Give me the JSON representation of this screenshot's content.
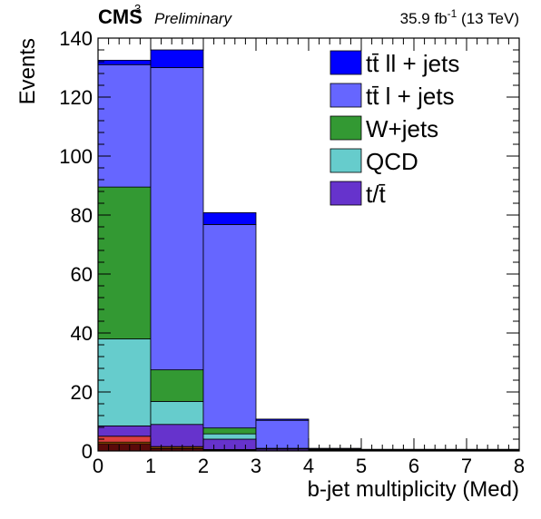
{
  "header": {
    "experiment": "CMS",
    "exponent": "3",
    "status": "Preliminary",
    "luminosity_prefix": "35.9 fb",
    "luminosity_exp": "-1",
    "luminosity_suffix": " (13 TeV)"
  },
  "chart_data": {
    "type": "bar",
    "stacked": true,
    "bins": [
      [
        0,
        1
      ],
      [
        1,
        2
      ],
      [
        2,
        3
      ],
      [
        3,
        4
      ],
      [
        4,
        5
      ],
      [
        5,
        6
      ],
      [
        6,
        7
      ],
      [
        7,
        8
      ]
    ],
    "xlabel": "b-jet multiplicity (Med)",
    "ylabel": "Events",
    "xlim": [
      0,
      8
    ],
    "ylim": [
      0,
      140
    ],
    "xticks": [
      0,
      1,
      2,
      3,
      4,
      5,
      6,
      7,
      8
    ],
    "yticks": [
      0,
      20,
      40,
      60,
      80,
      100,
      120,
      140
    ],
    "legend_position": "top-right",
    "series": [
      {
        "name": "",
        "color": "#5a0a0a",
        "values": [
          2.5,
          0.8,
          0.2,
          0.1,
          0,
          0,
          0,
          0
        ]
      },
      {
        "name": "",
        "color": "#ff8c00",
        "values": [
          0.5,
          0.4,
          0.1,
          0,
          0,
          0,
          0,
          0
        ]
      },
      {
        "name": "",
        "color": "#dd3f3f",
        "values": [
          2,
          0.3,
          0.2,
          0,
          0,
          0,
          0,
          0
        ]
      },
      {
        "name": "t/t̄",
        "color": "#6633cc",
        "values": [
          3.5,
          7.5,
          3.5,
          0.5,
          0.2,
          0,
          0,
          0
        ]
      },
      {
        "name": "QCD",
        "color": "#66cccc",
        "values": [
          29.5,
          7.8,
          1.8,
          0.2,
          0,
          0,
          0,
          0
        ]
      },
      {
        "name": "W+jets",
        "color": "#339933",
        "values": [
          51.5,
          10.7,
          2,
          0.1,
          0,
          0,
          0,
          0
        ]
      },
      {
        "name": "tt̄ l + jets",
        "color": "#6666ff",
        "values": [
          41.5,
          102.5,
          69,
          9.5,
          0.6,
          0.1,
          0,
          0
        ]
      },
      {
        "name": "tt̄ ll + jets",
        "color": "#0000ff",
        "values": [
          1.5,
          6,
          4,
          0.4,
          0.1,
          0,
          0,
          0
        ]
      }
    ],
    "legend": [
      {
        "label": "tt̄ ll + jets",
        "color": "#0000ff"
      },
      {
        "label": "tt̄ l + jets",
        "color": "#6666ff"
      },
      {
        "label": "W+jets",
        "color": "#339933"
      },
      {
        "label": "QCD",
        "color": "#66cccc"
      },
      {
        "label": "t/t̄",
        "color": "#6633cc"
      }
    ]
  }
}
